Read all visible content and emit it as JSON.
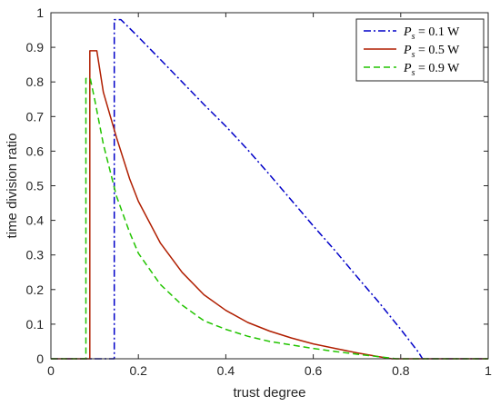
{
  "chart_data": {
    "type": "line",
    "title": "",
    "xlabel": "trust degree",
    "ylabel": "time division ratio",
    "xlim": [
      0,
      1
    ],
    "ylim": [
      0,
      1
    ],
    "xticks": [
      0,
      0.2,
      0.4,
      0.6,
      0.8,
      1
    ],
    "xtick_labels": [
      "0",
      "0.2",
      "0.4",
      "0.6",
      "0.8",
      "1"
    ],
    "yticks": [
      0,
      0.1,
      0.2,
      0.3,
      0.4,
      0.5,
      0.6,
      0.7,
      0.8,
      0.9,
      1
    ],
    "ytick_labels": [
      "0",
      "0.1",
      "0.2",
      "0.3",
      "0.4",
      "0.5",
      "0.6",
      "0.7",
      "0.8",
      "0.9",
      "1"
    ],
    "grid": false,
    "legend_position": "top-right",
    "series": [
      {
        "name": "P_s = 0.1 W",
        "legend_var": "P",
        "legend_sub": "s",
        "legend_rest": " = 0.1 W",
        "color": "#0000c8",
        "style": "dashdot",
        "points": [
          [
            0,
            0
          ],
          [
            0.145,
            0
          ],
          [
            0.145,
            0.98
          ],
          [
            0.16,
            0.98
          ],
          [
            0.2,
            0.93
          ],
          [
            0.25,
            0.865
          ],
          [
            0.3,
            0.8
          ],
          [
            0.35,
            0.735
          ],
          [
            0.4,
            0.672
          ],
          [
            0.45,
            0.604
          ],
          [
            0.5,
            0.532
          ],
          [
            0.55,
            0.458
          ],
          [
            0.6,
            0.384
          ],
          [
            0.65,
            0.312
          ],
          [
            0.7,
            0.237
          ],
          [
            0.75,
            0.163
          ],
          [
            0.8,
            0.085
          ],
          [
            0.84,
            0.02
          ],
          [
            0.85,
            0
          ],
          [
            1,
            0
          ]
        ]
      },
      {
        "name": "P_s = 0.5 W",
        "legend_var": "P",
        "legend_sub": "s",
        "legend_rest": " = 0.5 W",
        "color": "#b01e00",
        "style": "solid",
        "points": [
          [
            0,
            0
          ],
          [
            0.089,
            0
          ],
          [
            0.089,
            0.89
          ],
          [
            0.105,
            0.89
          ],
          [
            0.12,
            0.77
          ],
          [
            0.15,
            0.64
          ],
          [
            0.18,
            0.52
          ],
          [
            0.2,
            0.455
          ],
          [
            0.25,
            0.335
          ],
          [
            0.3,
            0.25
          ],
          [
            0.35,
            0.185
          ],
          [
            0.4,
            0.14
          ],
          [
            0.45,
            0.105
          ],
          [
            0.5,
            0.08
          ],
          [
            0.55,
            0.06
          ],
          [
            0.6,
            0.043
          ],
          [
            0.65,
            0.03
          ],
          [
            0.7,
            0.017
          ],
          [
            0.75,
            0.006
          ],
          [
            0.78,
            0
          ],
          [
            1,
            0
          ]
        ]
      },
      {
        "name": "P_s = 0.9 W",
        "legend_var": "P",
        "legend_sub": "s",
        "legend_rest": " = 0.9 W",
        "color": "#22c400",
        "style": "dashed",
        "points": [
          [
            0,
            0
          ],
          [
            0.08,
            0
          ],
          [
            0.08,
            0.81
          ],
          [
            0.09,
            0.81
          ],
          [
            0.1,
            0.75
          ],
          [
            0.12,
            0.62
          ],
          [
            0.15,
            0.47
          ],
          [
            0.18,
            0.365
          ],
          [
            0.2,
            0.305
          ],
          [
            0.25,
            0.215
          ],
          [
            0.3,
            0.155
          ],
          [
            0.35,
            0.11
          ],
          [
            0.4,
            0.085
          ],
          [
            0.45,
            0.065
          ],
          [
            0.5,
            0.05
          ],
          [
            0.55,
            0.04
          ],
          [
            0.6,
            0.03
          ],
          [
            0.65,
            0.021
          ],
          [
            0.7,
            0.013
          ],
          [
            0.75,
            0.006
          ],
          [
            0.79,
            0
          ],
          [
            1,
            0
          ]
        ]
      }
    ]
  }
}
